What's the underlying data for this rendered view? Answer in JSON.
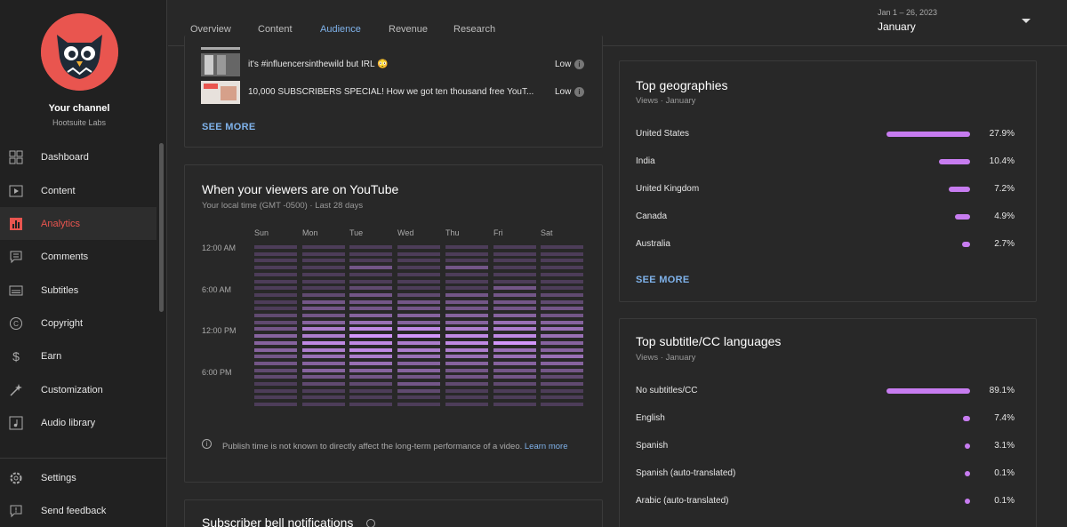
{
  "sidebar": {
    "channel_name": "Your channel",
    "channel_handle": "Hootsuite Labs",
    "items": [
      {
        "label": "Dashboard",
        "icon": "dashboard-icon"
      },
      {
        "label": "Content",
        "icon": "content-icon"
      },
      {
        "label": "Analytics",
        "icon": "analytics-icon",
        "active": true
      },
      {
        "label": "Comments",
        "icon": "comments-icon"
      },
      {
        "label": "Subtitles",
        "icon": "subtitles-icon"
      },
      {
        "label": "Copyright",
        "icon": "copyright-icon"
      },
      {
        "label": "Earn",
        "icon": "earn-icon"
      },
      {
        "label": "Customization",
        "icon": "customization-icon"
      },
      {
        "label": "Audio library",
        "icon": "audio-library-icon"
      }
    ],
    "bottom": [
      {
        "label": "Settings",
        "icon": "gear-icon"
      },
      {
        "label": "Send feedback",
        "icon": "feedback-icon"
      }
    ]
  },
  "tabs": [
    "Overview",
    "Content",
    "Audience",
    "Revenue",
    "Research"
  ],
  "active_tab": "Audience",
  "date_range": "Jan 1 – 26, 2023",
  "period": "January",
  "videos_card": {
    "rows": [
      {
        "title": "it's #influencersinthewild but IRL 😳",
        "level": "Low"
      },
      {
        "title": "10,000 SUBSCRIBERS SPECIAL! How we got ten thousand free YouT...",
        "level": "Low"
      }
    ],
    "see_more": "SEE MORE"
  },
  "when_card": {
    "title": "When your viewers are on YouTube",
    "subtitle": "Your local time (GMT -0500) · Last 28 days",
    "days": [
      "Sun",
      "Mon",
      "Tue",
      "Wed",
      "Thu",
      "Fri",
      "Sat"
    ],
    "hours": [
      "12:00 AM",
      "6:00 AM",
      "12:00 PM",
      "6:00 PM"
    ],
    "note": "Publish time is not known to directly affect the long-term performance of a video.",
    "note_link": "Learn more",
    "heat_levels": [
      [
        1,
        1,
        1,
        1,
        1,
        1,
        1,
        1,
        1,
        1,
        2,
        2,
        3,
        4,
        4,
        4,
        3,
        3,
        2,
        2,
        1,
        1,
        1,
        1
      ],
      [
        1,
        1,
        1,
        1,
        1,
        1,
        1,
        2,
        3,
        3,
        3,
        4,
        6,
        6,
        7,
        6,
        5,
        4,
        4,
        3,
        2,
        1,
        1,
        1
      ],
      [
        1,
        1,
        1,
        3,
        1,
        1,
        2,
        3,
        3,
        3,
        4,
        5,
        7,
        8,
        7,
        7,
        6,
        5,
        4,
        3,
        2,
        1,
        1,
        1
      ],
      [
        1,
        1,
        1,
        1,
        1,
        1,
        1,
        2,
        3,
        3,
        4,
        4,
        7,
        8,
        6,
        6,
        5,
        4,
        4,
        3,
        3,
        2,
        1,
        1
      ],
      [
        1,
        1,
        1,
        3,
        1,
        1,
        1,
        3,
        3,
        3,
        4,
        4,
        6,
        7,
        7,
        6,
        5,
        4,
        3,
        3,
        2,
        1,
        1,
        1
      ],
      [
        1,
        1,
        1,
        1,
        1,
        1,
        3,
        3,
        3,
        3,
        4,
        5,
        6,
        7,
        8,
        5,
        5,
        4,
        3,
        3,
        2,
        1,
        1,
        1
      ],
      [
        1,
        1,
        1,
        1,
        1,
        1,
        1,
        2,
        2,
        3,
        3,
        4,
        5,
        5,
        4,
        4,
        5,
        4,
        3,
        2,
        2,
        1,
        1,
        1
      ]
    ]
  },
  "bell_card": {
    "title": "Subscriber bell notifications"
  },
  "geo_card": {
    "title": "Top geographies",
    "subtitle": "Views · January",
    "rows": [
      {
        "label": "United States",
        "value": "27.9%",
        "share": 0.279
      },
      {
        "label": "India",
        "value": "10.4%",
        "share": 0.104
      },
      {
        "label": "United Kingdom",
        "value": "7.2%",
        "share": 0.072
      },
      {
        "label": "Canada",
        "value": "4.9%",
        "share": 0.049
      },
      {
        "label": "Australia",
        "value": "2.7%",
        "share": 0.027
      }
    ],
    "see_more": "SEE MORE"
  },
  "lang_card": {
    "title": "Top subtitle/CC languages",
    "subtitle": "Views · January",
    "rows": [
      {
        "label": "No subtitles/CC",
        "value": "89.1%",
        "share": 0.891
      },
      {
        "label": "English",
        "value": "7.4%",
        "share": 0.074
      },
      {
        "label": "Spanish",
        "value": "3.1%",
        "share": 0.031
      },
      {
        "label": "Spanish (auto-translated)",
        "value": "0.1%",
        "share": 0.001
      },
      {
        "label": "Arabic (auto-translated)",
        "value": "0.1%",
        "share": 0.001
      }
    ]
  },
  "colors": {
    "accent": "#3ea6ff",
    "active_nav": "#e9554f",
    "bar": "#c77cf0",
    "heat_base": "#9b6fd0"
  }
}
